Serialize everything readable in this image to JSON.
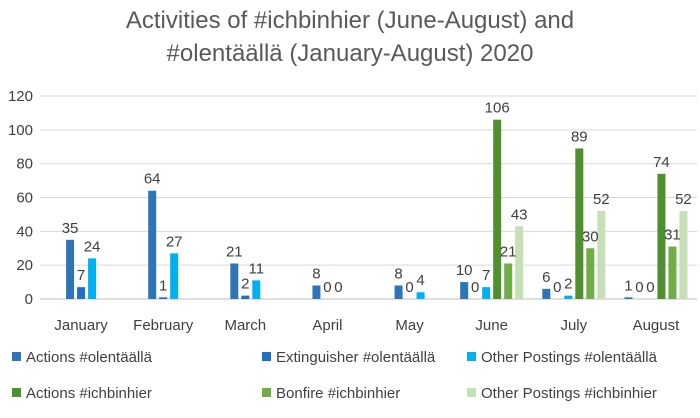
{
  "chart_data": {
    "type": "bar",
    "title": "Activities of #ichbinhier (June-August) and\n#olentäällä (January-August) 2020",
    "xlabel": "",
    "ylabel": "",
    "ylim": [
      0,
      120
    ],
    "yticks": [
      0,
      20,
      40,
      60,
      80,
      100,
      120
    ],
    "grid": true,
    "legend_position": "bottom",
    "categories": [
      "January",
      "February",
      "March",
      "April",
      "May",
      "June",
      "July",
      "August"
    ],
    "series": [
      {
        "name": "Actions #olentäällä",
        "color": "#2e75b6",
        "values": [
          35,
          64,
          21,
          8,
          8,
          10,
          6,
          1
        ]
      },
      {
        "name": "Extinguisher #olentäällä",
        "color": "#1f6fc6",
        "values": [
          7,
          1,
          2,
          0,
          0,
          0,
          0,
          0
        ]
      },
      {
        "name": "Other Postings #olentäällä",
        "color": "#00b0f0",
        "values": [
          24,
          27,
          11,
          0,
          4,
          7,
          2,
          0
        ]
      },
      {
        "name": "Actions #ichbinhier",
        "color": "#4e8f2e",
        "values": [
          null,
          null,
          null,
          null,
          null,
          106,
          89,
          74
        ]
      },
      {
        "name": "Bonfire #ichbinhier",
        "color": "#70ad47",
        "values": [
          null,
          null,
          null,
          null,
          null,
          21,
          30,
          31
        ]
      },
      {
        "name": "Other Postings #ichbinhier",
        "color": "#c5e0b4",
        "values": [
          null,
          null,
          null,
          null,
          null,
          43,
          52,
          52
        ]
      }
    ]
  }
}
